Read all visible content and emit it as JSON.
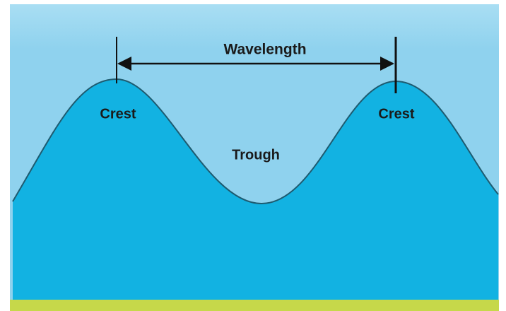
{
  "labels": {
    "wavelength": "Wavelength",
    "crest_left": "Crest",
    "crest_right": "Crest",
    "trough": "Trough"
  }
}
